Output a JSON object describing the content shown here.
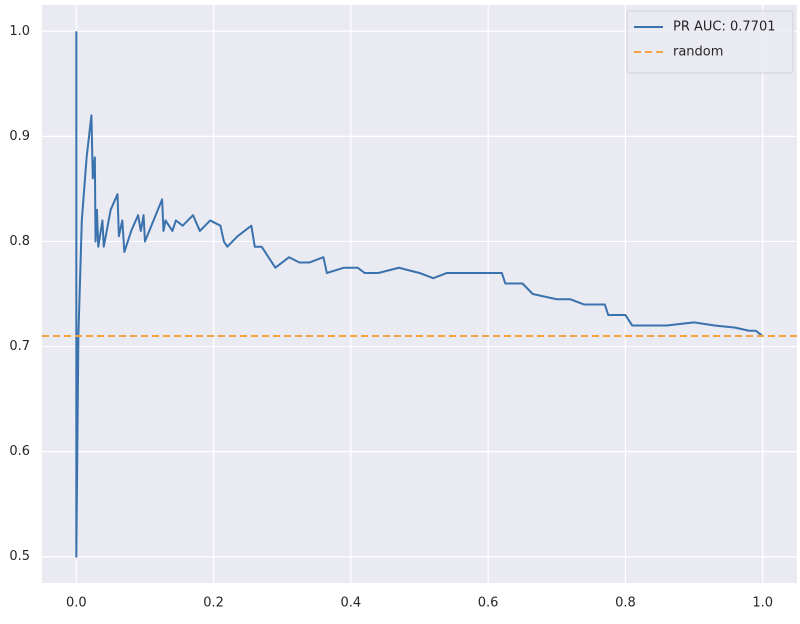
{
  "chart_data": {
    "type": "line",
    "series": [
      {
        "name": "PR AUC: 0.7701",
        "color": "#3a72ad",
        "x": [
          0.0,
          0.0,
          0.003,
          0.008,
          0.015,
          0.022,
          0.024,
          0.027,
          0.028,
          0.03,
          0.032,
          0.038,
          0.04,
          0.05,
          0.06,
          0.062,
          0.067,
          0.07,
          0.08,
          0.09,
          0.094,
          0.098,
          0.1,
          0.125,
          0.127,
          0.13,
          0.14,
          0.145,
          0.155,
          0.17,
          0.18,
          0.195,
          0.21,
          0.215,
          0.22,
          0.235,
          0.255,
          0.26,
          0.27,
          0.29,
          0.31,
          0.325,
          0.34,
          0.36,
          0.365,
          0.39,
          0.41,
          0.42,
          0.44,
          0.47,
          0.5,
          0.52,
          0.54,
          0.57,
          0.6,
          0.62,
          0.625,
          0.65,
          0.665,
          0.7,
          0.72,
          0.74,
          0.77,
          0.775,
          0.8,
          0.81,
          0.83,
          0.86,
          0.9,
          0.93,
          0.96,
          0.98,
          0.99,
          1.0
        ],
        "values": [
          1.0,
          0.5,
          0.71,
          0.82,
          0.88,
          0.92,
          0.86,
          0.88,
          0.8,
          0.83,
          0.795,
          0.82,
          0.795,
          0.83,
          0.845,
          0.805,
          0.82,
          0.79,
          0.81,
          0.825,
          0.81,
          0.825,
          0.8,
          0.84,
          0.81,
          0.82,
          0.81,
          0.82,
          0.815,
          0.825,
          0.81,
          0.82,
          0.815,
          0.8,
          0.795,
          0.805,
          0.815,
          0.795,
          0.795,
          0.775,
          0.785,
          0.78,
          0.78,
          0.785,
          0.77,
          0.775,
          0.775,
          0.77,
          0.77,
          0.775,
          0.77,
          0.765,
          0.77,
          0.77,
          0.77,
          0.77,
          0.76,
          0.76,
          0.75,
          0.745,
          0.745,
          0.74,
          0.74,
          0.73,
          0.73,
          0.72,
          0.72,
          0.72,
          0.723,
          0.72,
          0.718,
          0.715,
          0.715,
          0.71
        ]
      }
    ],
    "reference_line": {
      "name": "random",
      "y": 0.71,
      "color": "#f4a340",
      "style": "dashed"
    },
    "xlim": [
      -0.05,
      1.05
    ],
    "ylim": [
      0.475,
      1.025
    ],
    "xticks": [
      {
        "value": 0.0,
        "label": "0.0"
      },
      {
        "value": 0.2,
        "label": "0.2"
      },
      {
        "value": 0.4,
        "label": "0.4"
      },
      {
        "value": 0.6,
        "label": "0.6"
      },
      {
        "value": 0.8,
        "label": "0.8"
      },
      {
        "value": 1.0,
        "label": "1.0"
      }
    ],
    "yticks": [
      {
        "value": 0.5,
        "label": "0.5"
      },
      {
        "value": 0.6,
        "label": "0.6"
      },
      {
        "value": 0.7,
        "label": "0.7"
      },
      {
        "value": 0.8,
        "label": "0.8"
      },
      {
        "value": 0.9,
        "label": "0.9"
      },
      {
        "value": 1.0,
        "label": "1.0"
      }
    ],
    "grid": true,
    "legend": "upper-right"
  }
}
